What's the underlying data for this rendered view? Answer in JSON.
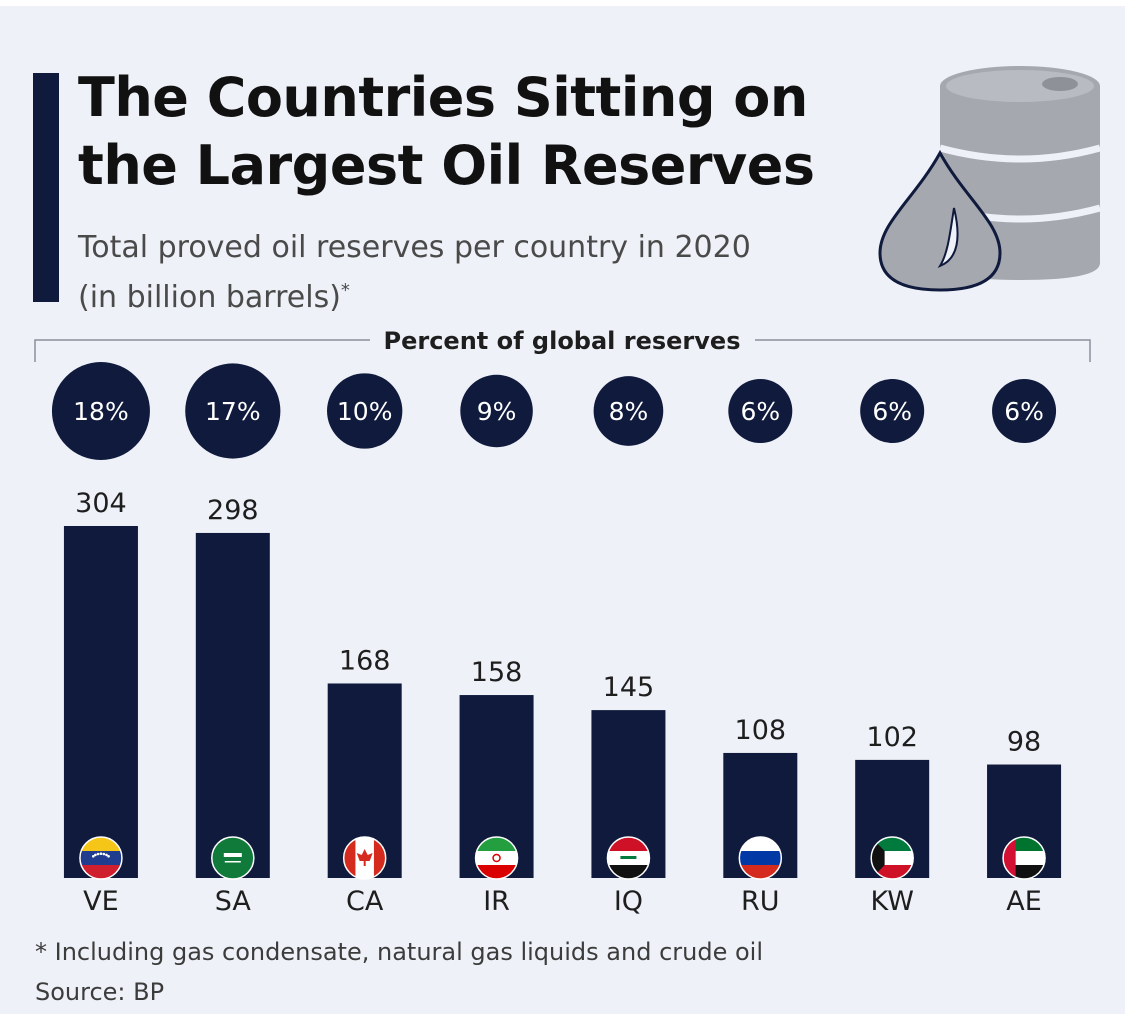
{
  "header": {
    "title_line1": "The Countries Sitting on",
    "title_line2": "the Largest Oil Reserves",
    "subtitle_line1": "Total proved oil reserves per country in 2020",
    "subtitle_line2": "(in billion barrels)",
    "subtitle_mark": "*"
  },
  "icon": {
    "name": "oil-barrel-drop-icon"
  },
  "colors": {
    "bar": "#0f1a3c",
    "circle": "#0f1a3c",
    "circle_text": "#ffffff",
    "background": "#eef1f7",
    "accent": "#0f1a3c"
  },
  "chart_data": {
    "type": "bar",
    "title": "The Countries Sitting on the Largest Oil Reserves",
    "subtitle": "Total proved oil reserves per country in 2020 (in billion barrels)*",
    "xlabel": "",
    "ylabel": "",
    "ylim": [
      0,
      304
    ],
    "grid": false,
    "categories": [
      "VE",
      "SA",
      "CA",
      "IR",
      "IQ",
      "RU",
      "KW",
      "AE"
    ],
    "values": [
      304,
      298,
      168,
      158,
      145,
      108,
      102,
      98
    ],
    "value_labels": [
      "304",
      "298",
      "168",
      "158",
      "145",
      "108",
      "102",
      "98"
    ],
    "share_title": "Percent of global reserves",
    "share_percent": [
      18,
      17,
      10,
      9,
      8,
      6,
      6,
      6
    ],
    "share_labels": [
      "18%",
      "17%",
      "10%",
      "9%",
      "8%",
      "6%",
      "6%",
      "6%"
    ],
    "flags": [
      "venezuela-flag-icon",
      "saudi-arabia-flag-icon",
      "canada-flag-icon",
      "iran-flag-icon",
      "iraq-flag-icon",
      "russia-flag-icon",
      "kuwait-flag-icon",
      "uae-flag-icon"
    ]
  },
  "footer": {
    "note": "* Including gas condensate, natural gas liquids and crude oil",
    "source": "Source: BP"
  }
}
